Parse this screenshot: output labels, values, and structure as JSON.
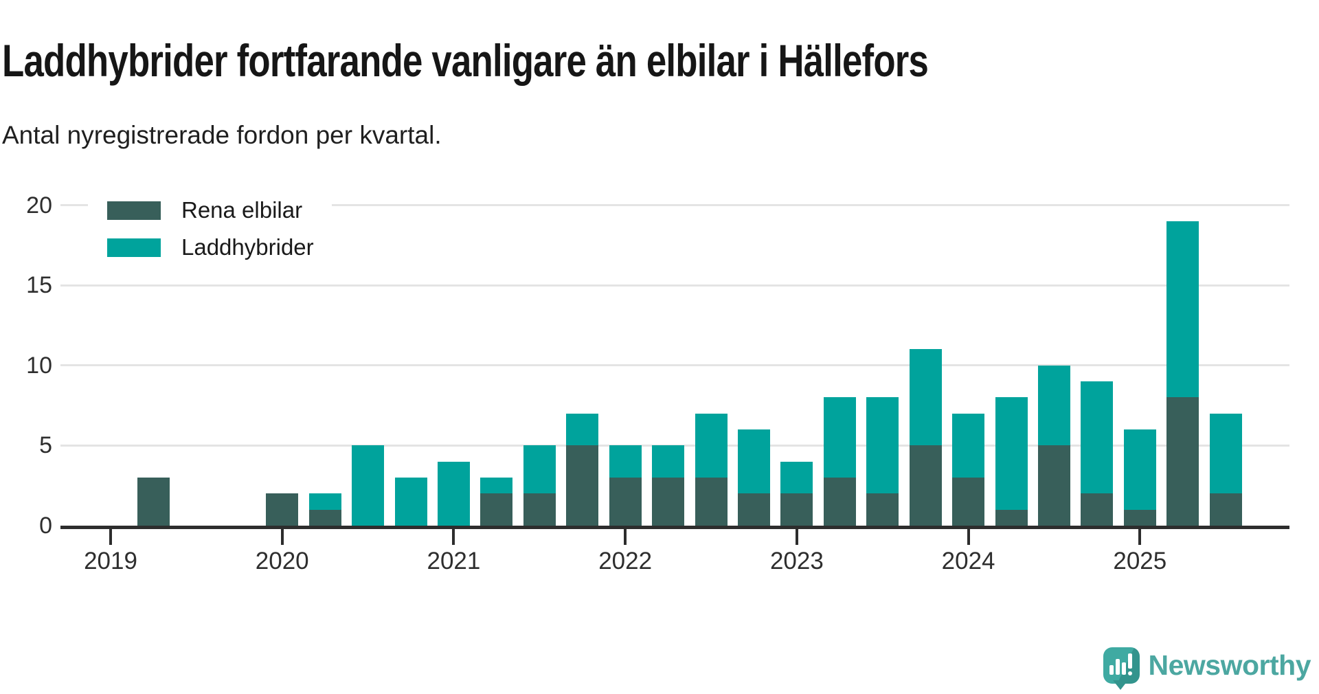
{
  "title": "Laddhybrider fortfarande vanligare än elbilar i Hällefors",
  "subtitle": "Antal nyregistrerade fordon per kvartal.",
  "legend": [
    {
      "label": "Rena elbilar",
      "color": "#385f5a"
    },
    {
      "label": "Laddhybrider",
      "color": "#00a39c"
    }
  ],
  "chart_data": {
    "type": "bar",
    "stacked": true,
    "title": "Laddhybrider fortfarande vanligare än elbilar i Hällefors",
    "subtitle": "Antal nyregistrerade fordon per kvartal.",
    "xlabel": "",
    "ylabel": "",
    "ylim": [
      0,
      20
    ],
    "yticks": [
      0,
      5,
      10,
      15,
      20
    ],
    "grid": true,
    "legend_position": "top-left",
    "x_years": [
      "2019",
      "2020",
      "2021",
      "2022",
      "2023",
      "2024",
      "2025"
    ],
    "quarters": [
      "2019 Q1",
      "2019 Q2",
      "2019 Q3",
      "2019 Q4",
      "2020 Q1",
      "2020 Q2",
      "2020 Q3",
      "2020 Q4",
      "2021 Q1",
      "2021 Q2",
      "2021 Q3",
      "2021 Q4",
      "2022 Q1",
      "2022 Q2",
      "2022 Q3",
      "2022 Q4",
      "2023 Q1",
      "2023 Q2",
      "2023 Q3",
      "2023 Q4",
      "2024 Q1",
      "2024 Q2",
      "2024 Q3",
      "2024 Q4",
      "2025 Q1",
      "2025 Q2",
      "2025 Q3"
    ],
    "series": [
      {
        "name": "Rena elbilar",
        "color": "#385f5a",
        "values": [
          0,
          3,
          0,
          0,
          2,
          1,
          0,
          0,
          0,
          2,
          2,
          5,
          3,
          3,
          3,
          2,
          2,
          3,
          2,
          5,
          3,
          1,
          5,
          2,
          1,
          8,
          2
        ]
      },
      {
        "name": "Laddhybrider",
        "color": "#00a39c",
        "values": [
          0,
          0,
          0,
          0,
          0,
          1,
          5,
          3,
          4,
          1,
          3,
          2,
          2,
          2,
          4,
          4,
          2,
          5,
          6,
          6,
          4,
          7,
          5,
          7,
          5,
          11,
          5
        ]
      }
    ]
  },
  "watermark": {
    "brand": "Newsworthy"
  }
}
